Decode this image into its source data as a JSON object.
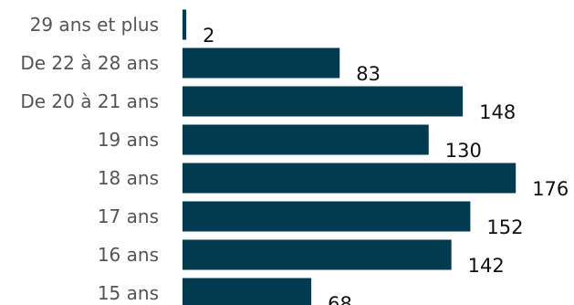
{
  "chart_data": {
    "type": "bar",
    "orientation": "horizontal",
    "categories": [
      "29 ans et plus",
      "De 22 à 28 ans",
      "De 20 à 21 ans",
      "19 ans",
      "18 ans",
      "17 ans",
      "16 ans",
      "15 ans"
    ],
    "values": [
      2,
      83,
      148,
      130,
      176,
      152,
      142,
      68
    ],
    "title": "",
    "xlabel": "",
    "ylabel": "",
    "xlim": [
      0,
      176
    ],
    "grid": false,
    "legend": "none",
    "bar_color": "#023a4f"
  }
}
